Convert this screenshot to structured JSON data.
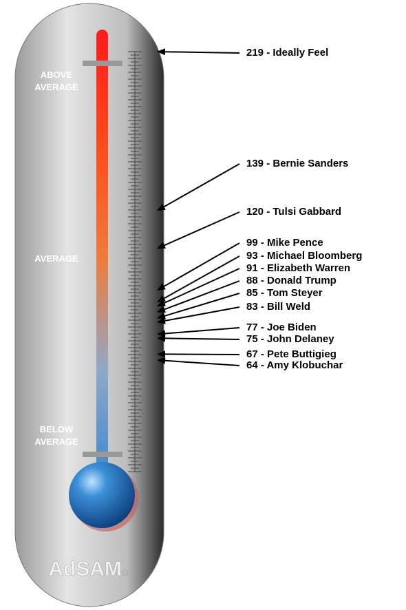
{
  "chart_data": {
    "type": "thermometer",
    "values": [
      219,
      139,
      120,
      99,
      93,
      91,
      88,
      85,
      83,
      77,
      75,
      67,
      64
    ],
    "value_labels": [
      "219 - Ideally Feel",
      "139 - Bernie Sanders",
      "120 - Tulsi Gabbard",
      "99 - Mike Pence",
      "93 - Michael Bloomberg",
      "91 - Elizabeth Warren",
      "88 - Donald Trump",
      "85 - Tom Steyer",
      "83 - Bill Weld",
      "77 - Joe Biden",
      "75 - John Delaney",
      "67 - Pete Buttigieg",
      "64 - Amy Klobuchar"
    ],
    "zones": {
      "above": [
        "ABOVE",
        "AVERAGE"
      ],
      "middle": [
        "AVERAGE"
      ],
      "below": [
        "BELOW",
        "AVERAGE"
      ]
    },
    "logo": "AdSAM",
    "logo_mark": "®"
  }
}
